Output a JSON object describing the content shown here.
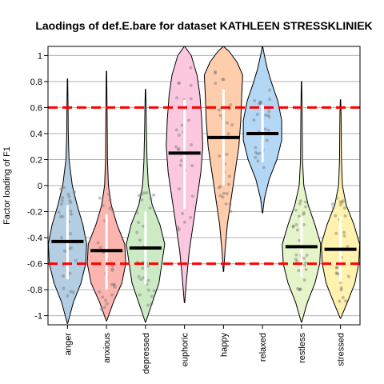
{
  "chart_data": {
    "type": "violin",
    "title": "Laodings of def.E.bare for dataset KATHLEEN STRESSKLINIEK",
    "xlabel": "",
    "ylabel": "Factor loading of F1",
    "ylim": [
      -1.07,
      1.07
    ],
    "y_ticks": [
      -1,
      -0.8,
      -0.6,
      -0.4,
      -0.2,
      0,
      0.2,
      0.4,
      0.6,
      0.8,
      1
    ],
    "y_tick_labels": [
      "-1",
      "-0.8",
      "-0.6",
      "-0.4",
      "-0.2",
      "0",
      "0.2",
      "0.4",
      "0.6",
      "0.8",
      "1"
    ],
    "grid": true,
    "reference_lines": [
      {
        "y": 0.6,
        "color": "#ff0000",
        "style": "dashed"
      },
      {
        "y": -0.6,
        "color": "#ff0000",
        "style": "dashed"
      }
    ],
    "categories": [
      "anger",
      "anxious",
      "depressed",
      "euphoric",
      "happy",
      "relaxed",
      "restless",
      "stressed"
    ],
    "series": [
      {
        "category": "anger",
        "color": "#b3cde3",
        "min": -1.06,
        "max": 0.82,
        "mean": -0.43,
        "sd_low": -0.72,
        "sd_high": -0.15,
        "density": [
          [
            -1.06,
            0.01
          ],
          [
            -0.9,
            0.3
          ],
          [
            -0.75,
            0.7
          ],
          [
            -0.6,
            0.95
          ],
          [
            -0.45,
            1.0
          ],
          [
            -0.3,
            0.8
          ],
          [
            -0.15,
            0.5
          ],
          [
            0,
            0.25
          ],
          [
            0.2,
            0.08
          ],
          [
            0.4,
            0.04
          ],
          [
            0.6,
            0.03
          ],
          [
            0.82,
            0.01
          ]
        ]
      },
      {
        "category": "anxious",
        "color": "#fbb4ae",
        "min": -1.04,
        "max": 0.88,
        "mean": -0.5,
        "sd_low": -0.8,
        "sd_high": -0.22,
        "density": [
          [
            -1.04,
            0.01
          ],
          [
            -0.9,
            0.35
          ],
          [
            -0.75,
            0.8
          ],
          [
            -0.6,
            1.0
          ],
          [
            -0.45,
            0.95
          ],
          [
            -0.3,
            0.55
          ],
          [
            -0.15,
            0.25
          ],
          [
            0,
            0.1
          ],
          [
            0.2,
            0.05
          ],
          [
            0.4,
            0.04
          ],
          [
            0.6,
            0.03
          ],
          [
            0.88,
            0.01
          ]
        ]
      },
      {
        "category": "depressed",
        "color": "#ccebc5",
        "min": -1.05,
        "max": 0.74,
        "mean": -0.48,
        "sd_low": -0.76,
        "sd_high": -0.2,
        "density": [
          [
            -1.05,
            0.01
          ],
          [
            -0.9,
            0.35
          ],
          [
            -0.75,
            0.7
          ],
          [
            -0.6,
            0.85
          ],
          [
            -0.45,
            1.0
          ],
          [
            -0.3,
            0.75
          ],
          [
            -0.15,
            0.35
          ],
          [
            0,
            0.15
          ],
          [
            0.2,
            0.08
          ],
          [
            0.4,
            0.05
          ],
          [
            0.6,
            0.03
          ],
          [
            0.74,
            0.01
          ]
        ]
      },
      {
        "category": "euphoric",
        "color": "#fbc8e0",
        "min": -0.9,
        "max": 1.07,
        "mean": 0.25,
        "sd_low": -0.18,
        "sd_high": 0.66,
        "density": [
          [
            -0.9,
            0.01
          ],
          [
            -0.7,
            0.12
          ],
          [
            -0.5,
            0.25
          ],
          [
            -0.3,
            0.45
          ],
          [
            -0.1,
            0.65
          ],
          [
            0.1,
            0.85
          ],
          [
            0.3,
            0.95
          ],
          [
            0.5,
            0.9
          ],
          [
            0.7,
            0.8
          ],
          [
            0.85,
            0.65
          ],
          [
            1.0,
            0.35
          ],
          [
            1.07,
            0.01
          ]
        ]
      },
      {
        "category": "happy",
        "color": "#fdcdac",
        "min": -0.66,
        "max": 1.07,
        "mean": 0.37,
        "sd_low": 0.0,
        "sd_high": 0.74,
        "density": [
          [
            -0.66,
            0.01
          ],
          [
            -0.5,
            0.08
          ],
          [
            -0.3,
            0.2
          ],
          [
            -0.1,
            0.4
          ],
          [
            0.1,
            0.6
          ],
          [
            0.3,
            0.8
          ],
          [
            0.5,
            0.9
          ],
          [
            0.7,
            0.95
          ],
          [
            0.85,
            1.0
          ],
          [
            0.95,
            0.7
          ],
          [
            1.03,
            0.3
          ],
          [
            1.07,
            0.01
          ]
        ]
      },
      {
        "category": "relaxed",
        "color": "#b3d7f5",
        "min": -0.21,
        "max": 1.07,
        "mean": 0.4,
        "sd_low": 0.18,
        "sd_high": 0.62,
        "density": [
          [
            -0.21,
            0.01
          ],
          [
            -0.1,
            0.1
          ],
          [
            0.05,
            0.35
          ],
          [
            0.2,
            0.75
          ],
          [
            0.35,
            1.0
          ],
          [
            0.5,
            1.0
          ],
          [
            0.65,
            0.8
          ],
          [
            0.8,
            0.45
          ],
          [
            0.9,
            0.25
          ],
          [
            1.0,
            0.1
          ],
          [
            1.07,
            0.01
          ]
        ]
      },
      {
        "category": "restless",
        "color": "#e6f5c9",
        "min": -1.05,
        "max": 0.8,
        "mean": -0.47,
        "sd_low": -0.7,
        "sd_high": -0.24,
        "density": [
          [
            -1.05,
            0.01
          ],
          [
            -0.9,
            0.3
          ],
          [
            -0.75,
            0.7
          ],
          [
            -0.6,
            0.95
          ],
          [
            -0.45,
            1.0
          ],
          [
            -0.3,
            0.7
          ],
          [
            -0.15,
            0.35
          ],
          [
            0,
            0.12
          ],
          [
            0.2,
            0.05
          ],
          [
            0.4,
            0.04
          ],
          [
            0.6,
            0.03
          ],
          [
            0.8,
            0.01
          ]
        ]
      },
      {
        "category": "stressed",
        "color": "#fff2ae",
        "min": -1.02,
        "max": 0.66,
        "mean": -0.49,
        "sd_low": -0.74,
        "sd_high": -0.24,
        "density": [
          [
            -1.02,
            0.01
          ],
          [
            -0.9,
            0.35
          ],
          [
            -0.75,
            0.75
          ],
          [
            -0.6,
            0.95
          ],
          [
            -0.45,
            1.0
          ],
          [
            -0.3,
            0.7
          ],
          [
            -0.15,
            0.3
          ],
          [
            0,
            0.1
          ],
          [
            0.2,
            0.05
          ],
          [
            0.4,
            0.04
          ],
          [
            0.55,
            0.03
          ],
          [
            0.66,
            0.01
          ]
        ]
      }
    ]
  }
}
